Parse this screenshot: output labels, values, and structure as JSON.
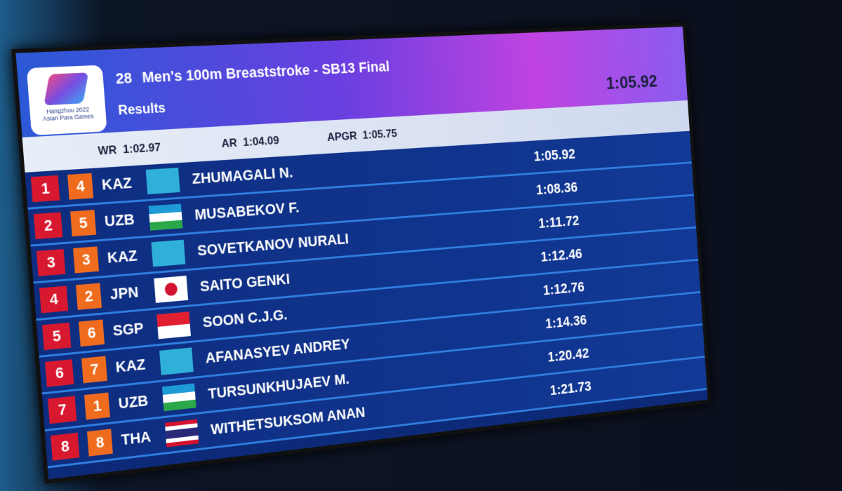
{
  "header": {
    "event_number": "28",
    "event": "Men's 100m Breaststroke - SB13 Final",
    "subtitle": "Results",
    "top_time": "1:05.92",
    "logo": {
      "title": "Hangzhou 2022",
      "subtitle": "Asian Para Games"
    }
  },
  "records": [
    {
      "label": "WR",
      "time": "1:02.97"
    },
    {
      "label": "AR",
      "time": "1:04.09"
    },
    {
      "label": "APGR",
      "time": "1:05.75"
    }
  ],
  "table": {
    "rows": [
      {
        "rank": 1,
        "lane": 4,
        "country": "KAZ",
        "name": "ZHUMAGALI N.",
        "time": "1:05.92"
      },
      {
        "rank": 2,
        "lane": 5,
        "country": "UZB",
        "name": "MUSABEKOV F.",
        "time": "1:08.36"
      },
      {
        "rank": 3,
        "lane": 3,
        "country": "KAZ",
        "name": "SOVETKANOV NURALI",
        "time": "1:11.72"
      },
      {
        "rank": 4,
        "lane": 2,
        "country": "JPN",
        "name": "SAITO GENKI",
        "time": "1:12.46"
      },
      {
        "rank": 5,
        "lane": 6,
        "country": "SGP",
        "name": "SOON C.J.G.",
        "time": "1:12.76"
      },
      {
        "rank": 6,
        "lane": 7,
        "country": "KAZ",
        "name": "AFANASYEV ANDREY",
        "time": "1:14.36"
      },
      {
        "rank": 7,
        "lane": 1,
        "country": "UZB",
        "name": "TURSUNKHUJAEV M.",
        "time": "1:20.42"
      },
      {
        "rank": 8,
        "lane": 8,
        "country": "THA",
        "name": "WITHETSUKSOM ANAN",
        "time": "1:21.73"
      }
    ]
  }
}
